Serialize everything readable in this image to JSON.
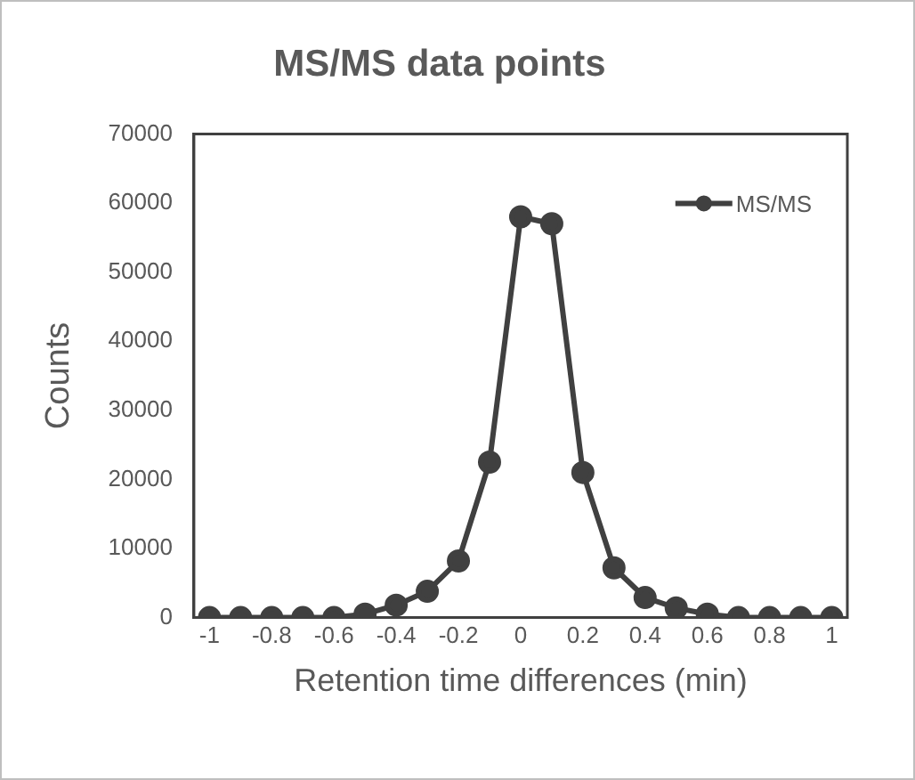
{
  "chart_data": {
    "type": "line",
    "title": "MS/MS data points",
    "xlabel": "Retention time differences (min)",
    "ylabel": "Counts",
    "x": [
      -1,
      -0.9,
      -0.8,
      -0.7,
      -0.6,
      -0.5,
      -0.4,
      -0.3,
      -0.2,
      -0.1,
      0,
      0.1,
      0.2,
      0.3,
      0.4,
      0.5,
      0.6,
      0.7,
      0.8,
      0.9,
      1
    ],
    "series": [
      {
        "name": "MS/MS",
        "color": "#404040",
        "values": [
          0,
          0,
          0,
          0,
          0,
          500,
          1800,
          3800,
          8200,
          22500,
          58000,
          57000,
          21000,
          7200,
          2900,
          1400,
          500,
          0,
          0,
          0,
          0
        ]
      }
    ],
    "xlim": [
      -1.05,
      1.05
    ],
    "xticks": [
      -1,
      -0.8,
      -0.6,
      -0.4,
      -0.2,
      0,
      0.2,
      0.4,
      0.6,
      0.8,
      1
    ],
    "ylim": [
      0,
      70000
    ],
    "yticks": [
      0,
      10000,
      20000,
      30000,
      40000,
      50000,
      60000,
      70000
    ],
    "grid": false,
    "legend": "top right",
    "marker": "circle",
    "line_style": "solid"
  }
}
